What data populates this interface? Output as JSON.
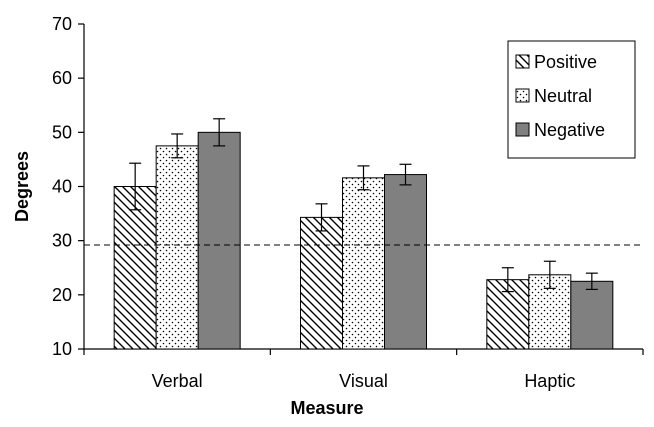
{
  "chart_data": {
    "type": "bar",
    "title": "",
    "xlabel": "Measure",
    "ylabel": "Degrees",
    "ylim": [
      10,
      70
    ],
    "yticks": [
      10,
      20,
      30,
      40,
      50,
      60,
      70
    ],
    "categories": [
      "Verbal",
      "Visual",
      "Haptic"
    ],
    "series": [
      {
        "name": "Positive",
        "values": [
          40.0,
          34.3,
          22.8
        ],
        "errors": [
          4.3,
          2.5,
          2.2
        ],
        "fill": "hatch",
        "color": "#000000"
      },
      {
        "name": "Neutral",
        "values": [
          47.5,
          41.6,
          23.7
        ],
        "errors": [
          2.2,
          2.2,
          2.5
        ],
        "fill": "dots",
        "color": "#000000"
      },
      {
        "name": "Negative",
        "values": [
          50.0,
          42.2,
          22.5
        ],
        "errors": [
          2.5,
          1.9,
          1.5
        ],
        "fill": "solid",
        "color": "#808080"
      }
    ],
    "reference_line": {
      "value": 29.2,
      "style": "dashed"
    },
    "grid": false,
    "legend_position": "top-right"
  }
}
